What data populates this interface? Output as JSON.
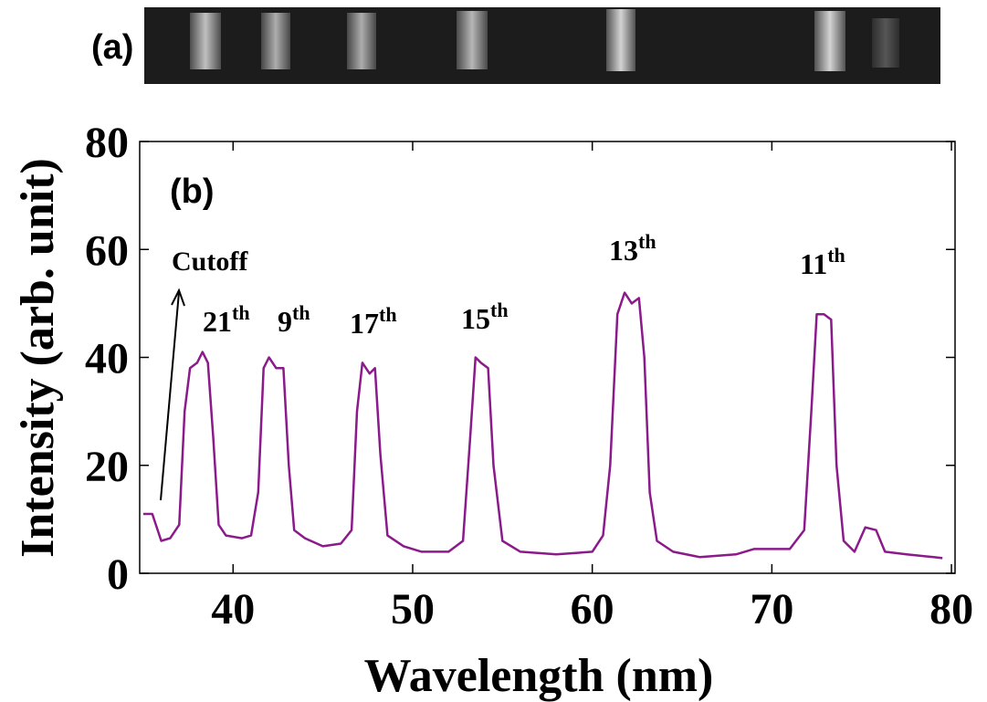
{
  "panel_a": {
    "label": "(a)"
  },
  "chart_data": {
    "type": "line",
    "panel_label": "(b)",
    "xlabel": "Wavelength (nm)",
    "ylabel": "Intensity (arb. unit)",
    "cutoff_label": "Cutoff",
    "annotations": [
      {
        "text": "21",
        "sup": "th"
      },
      {
        "text": "9",
        "sup": "th"
      },
      {
        "text": "17",
        "sup": "th"
      },
      {
        "text": "15",
        "sup": "th"
      },
      {
        "text": "13",
        "sup": "th"
      },
      {
        "text": "11",
        "sup": "th"
      }
    ],
    "color": "#8b1a8b",
    "x": [
      35,
      35.5,
      36,
      36.5,
      37,
      37.3,
      37.6,
      38,
      38.3,
      38.6,
      38.9,
      39.2,
      39.6,
      40.5,
      41,
      41.4,
      41.7,
      42,
      42.4,
      42.8,
      43.1,
      43.4,
      44,
      45,
      46,
      46.6,
      46.9,
      47.2,
      47.6,
      47.9,
      48.2,
      48.6,
      49.5,
      50.5,
      52,
      52.8,
      53.2,
      53.5,
      53.8,
      54.2,
      54.5,
      55,
      56,
      58,
      60,
      60.6,
      61,
      61.4,
      61.8,
      62.2,
      62.6,
      62.9,
      63.2,
      63.6,
      64.5,
      66,
      68,
      69,
      70,
      71,
      71.8,
      72.2,
      72.5,
      72.9,
      73.3,
      73.6,
      74,
      74.6,
      75.2,
      75.8,
      76.3,
      77.5,
      79,
      79.5
    ],
    "values": [
      11,
      11,
      6,
      6.5,
      9,
      30,
      38,
      39,
      41,
      39,
      25,
      9,
      7,
      6.5,
      7,
      15,
      38,
      40,
      38,
      38,
      20,
      8,
      6.5,
      5,
      5.5,
      8,
      30,
      39,
      37,
      38,
      22,
      7,
      5,
      4,
      4,
      6,
      25,
      40,
      39,
      38,
      20,
      6,
      4,
      3.5,
      4,
      7,
      20,
      48,
      52,
      50,
      51,
      40,
      15,
      6,
      4,
      3,
      3.5,
      4.5,
      4.5,
      4.5,
      8,
      30,
      48,
      48,
      47,
      20,
      6,
      4,
      8.5,
      8,
      4,
      3.5,
      3,
      2.8
    ],
    "xlim": [
      34.8,
      80.2
    ],
    "ylim": [
      0,
      80
    ],
    "xticks": [
      40,
      50,
      60,
      70,
      80
    ],
    "yticks": [
      0,
      20,
      40,
      60,
      80
    ]
  }
}
